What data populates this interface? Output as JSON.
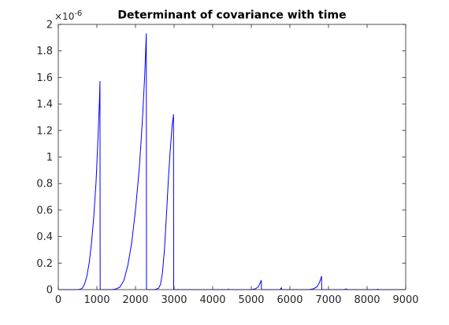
{
  "chart_data": {
    "type": "line",
    "title": "Determinant of covariance with time",
    "xlabel": "",
    "ylabel": "",
    "y_multiplier_label": "×10",
    "y_multiplier_exponent": "-6",
    "xlim": [
      0,
      9000
    ],
    "ylim": [
      0,
      2
    ],
    "x_ticks": [
      0,
      1000,
      2000,
      3000,
      4000,
      5000,
      6000,
      7000,
      8000,
      9000
    ],
    "x_tick_labels": [
      "0",
      "1000",
      "2000",
      "3000",
      "4000",
      "5000",
      "6000",
      "7000",
      "8000",
      "9000"
    ],
    "y_ticks": [
      0,
      0.2,
      0.4,
      0.6,
      0.8,
      1,
      1.2,
      1.4,
      1.6,
      1.8,
      2
    ],
    "y_tick_labels": [
      "0",
      "0.2",
      "0.4",
      "0.6",
      "0.8",
      "1",
      "1.2",
      "1.4",
      "1.6",
      "1.8",
      "2"
    ],
    "grid": false,
    "line_color": "#0000ff",
    "axis_color": "#262626",
    "series": [
      {
        "values": [
          [
            0,
            0
          ],
          [
            500,
            0
          ],
          [
            560,
            0.002
          ],
          [
            620,
            0.01
          ],
          [
            680,
            0.04
          ],
          [
            740,
            0.1
          ],
          [
            800,
            0.2
          ],
          [
            860,
            0.35
          ],
          [
            920,
            0.55
          ],
          [
            980,
            0.82
          ],
          [
            1030,
            1.15
          ],
          [
            1065,
            1.42
          ],
          [
            1080,
            1.57
          ],
          [
            1085,
            0
          ],
          [
            1100,
            0
          ],
          [
            1400,
            0
          ],
          [
            1500,
            0.005
          ],
          [
            1600,
            0.02
          ],
          [
            1700,
            0.07
          ],
          [
            1800,
            0.18
          ],
          [
            1900,
            0.35
          ],
          [
            2000,
            0.6
          ],
          [
            2100,
            0.92
          ],
          [
            2180,
            1.28
          ],
          [
            2240,
            1.62
          ],
          [
            2280,
            1.93
          ],
          [
            2285,
            0
          ],
          [
            2300,
            0
          ],
          [
            2500,
            0
          ],
          [
            2600,
            0.01
          ],
          [
            2650,
            0.04
          ],
          [
            2700,
            0.13
          ],
          [
            2750,
            0.3
          ],
          [
            2800,
            0.55
          ],
          [
            2850,
            0.82
          ],
          [
            2900,
            1.05
          ],
          [
            2950,
            1.24
          ],
          [
            2985,
            1.32
          ],
          [
            2990,
            0
          ],
          [
            3000,
            0
          ],
          [
            4400,
            0
          ],
          [
            4410,
            0.004
          ],
          [
            4420,
            0
          ],
          [
            5000,
            0
          ],
          [
            5100,
            0.005
          ],
          [
            5180,
            0.02
          ],
          [
            5230,
            0.05
          ],
          [
            5260,
            0.07
          ],
          [
            5265,
            0
          ],
          [
            5750,
            0
          ],
          [
            5770,
            0.01
          ],
          [
            5780,
            0.015
          ],
          [
            5785,
            0
          ],
          [
            6500,
            0
          ],
          [
            6600,
            0.005
          ],
          [
            6700,
            0.02
          ],
          [
            6760,
            0.05
          ],
          [
            6800,
            0.08
          ],
          [
            6820,
            0.1
          ],
          [
            6825,
            0
          ],
          [
            7400,
            0
          ],
          [
            7450,
            0.004
          ],
          [
            7470,
            0.005
          ],
          [
            7475,
            0
          ],
          [
            8250,
            0
          ],
          [
            8280,
            0.003
          ],
          [
            8300,
            0
          ],
          [
            9000,
            0
          ]
        ]
      }
    ]
  }
}
